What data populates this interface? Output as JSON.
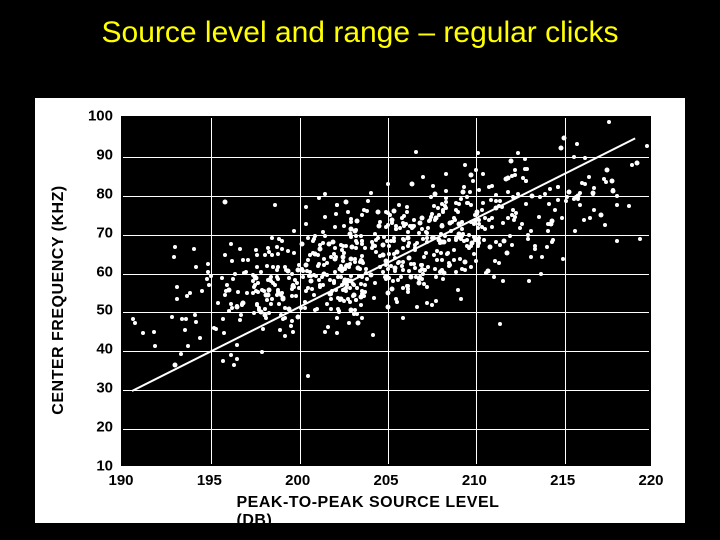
{
  "title": "Source level and range – regular clicks",
  "chart": {
    "type": "scatter",
    "xlabel": "PEAK-TO-PEAK SOURCE LEVEL (DB)",
    "ylabel": "CENTER FREQUENCY (KHZ)",
    "xlim": [
      190,
      220
    ],
    "ylim": [
      10,
      100
    ],
    "xticks": [
      190,
      195,
      200,
      205,
      210,
      215,
      220
    ],
    "yticks": [
      10,
      20,
      30,
      40,
      50,
      60,
      70,
      80,
      90,
      100
    ],
    "xtick_labels": [
      "190",
      "195",
      "200",
      "205",
      "210",
      "215",
      "220"
    ],
    "ytick_labels": [
      "10",
      "20",
      "30",
      "40",
      "50",
      "60",
      "70",
      "80",
      "90",
      "100"
    ],
    "background_color": "#000000",
    "plot_bg": "#000000",
    "grid_color": "#ffffff",
    "point_color": "#ffffff",
    "line_color": "#ffffff",
    "text_color": "#000000",
    "title_color": "#ffff00",
    "title_fontsize": 30,
    "label_fontsize": 16,
    "tick_fontsize": 15,
    "point_size": 4,
    "line_width": 2,
    "trend_line": {
      "x1": 190.5,
      "y1": 30,
      "x2": 219,
      "y2": 95
    },
    "scatter_seed": {
      "n_points": 750,
      "centroid": [
        205,
        65
      ],
      "spread_major": 6.5,
      "spread_minor": 11.0,
      "corr": 0.74
    }
  }
}
